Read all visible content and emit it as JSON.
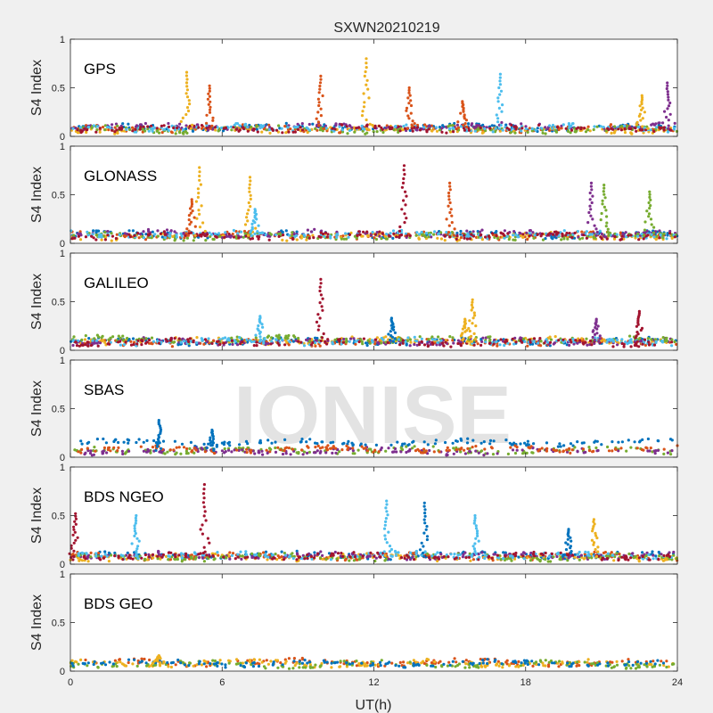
{
  "figure": {
    "title": "SXWN20210219",
    "xlabel": "UT(h)",
    "watermark": "IONISE"
  },
  "chart_data": [
    {
      "type": "scatter",
      "panel": "GPS",
      "title": "GPS",
      "ylabel": "S4 Index",
      "xlim": [
        0,
        24
      ],
      "ylim": [
        0,
        1
      ],
      "xticks": [
        "0",
        "6",
        "12",
        "18",
        "24"
      ],
      "yticks": [
        "0",
        "0.5",
        "1"
      ],
      "baseline": 0.08,
      "series": [
        {
          "color": "#0072BD",
          "level": 0.09
        },
        {
          "color": "#D95319",
          "level": 0.08
        },
        {
          "color": "#EDB120",
          "level": 0.07
        },
        {
          "color": "#7E2F8E",
          "level": 0.1
        },
        {
          "color": "#77AC30",
          "level": 0.07
        },
        {
          "color": "#4DBEEE",
          "level": 0.09
        },
        {
          "color": "#A2142F",
          "level": 0.08
        }
      ],
      "spikes": [
        {
          "x": 4.6,
          "y": 0.66,
          "color": "#EDB120"
        },
        {
          "x": 5.5,
          "y": 0.52,
          "color": "#D95319"
        },
        {
          "x": 9.9,
          "y": 0.62,
          "color": "#D95319"
        },
        {
          "x": 11.7,
          "y": 0.8,
          "color": "#EDB120"
        },
        {
          "x": 13.4,
          "y": 0.5,
          "color": "#D95319"
        },
        {
          "x": 15.5,
          "y": 0.36,
          "color": "#D95319"
        },
        {
          "x": 17.0,
          "y": 0.64,
          "color": "#4DBEEE"
        },
        {
          "x": 22.6,
          "y": 0.42,
          "color": "#EDB120"
        },
        {
          "x": 23.6,
          "y": 0.55,
          "color": "#7E2F8E"
        }
      ]
    },
    {
      "type": "scatter",
      "panel": "GLONASS",
      "title": "GLONASS",
      "ylabel": "S4 Index",
      "xlim": [
        0,
        24
      ],
      "ylim": [
        0,
        1
      ],
      "xticks": [
        "0",
        "6",
        "12",
        "18",
        "24"
      ],
      "yticks": [
        "0",
        "0.5",
        "1"
      ],
      "baseline": 0.08,
      "series": [
        {
          "color": "#0072BD",
          "level": 0.09
        },
        {
          "color": "#D95319",
          "level": 0.08
        },
        {
          "color": "#EDB120",
          "level": 0.07
        },
        {
          "color": "#7E2F8E",
          "level": 0.1
        },
        {
          "color": "#77AC30",
          "level": 0.07
        },
        {
          "color": "#4DBEEE",
          "level": 0.09
        },
        {
          "color": "#A2142F",
          "level": 0.08
        }
      ],
      "spikes": [
        {
          "x": 5.1,
          "y": 0.78,
          "color": "#EDB120"
        },
        {
          "x": 4.8,
          "y": 0.45,
          "color": "#D95319"
        },
        {
          "x": 7.1,
          "y": 0.68,
          "color": "#EDB120"
        },
        {
          "x": 7.3,
          "y": 0.35,
          "color": "#4DBEEE"
        },
        {
          "x": 13.2,
          "y": 0.8,
          "color": "#A2142F"
        },
        {
          "x": 15.0,
          "y": 0.62,
          "color": "#D95319"
        },
        {
          "x": 20.6,
          "y": 0.62,
          "color": "#7E2F8E"
        },
        {
          "x": 21.1,
          "y": 0.6,
          "color": "#77AC30"
        },
        {
          "x": 22.9,
          "y": 0.53,
          "color": "#77AC30"
        }
      ]
    },
    {
      "type": "scatter",
      "panel": "GALILEO",
      "title": "GALILEO",
      "ylabel": "S4 Index",
      "xlim": [
        0,
        24
      ],
      "ylim": [
        0,
        1
      ],
      "xticks": [
        "0",
        "6",
        "12",
        "18",
        "24"
      ],
      "yticks": [
        "0",
        "0.5",
        "1"
      ],
      "baseline": 0.09,
      "series": [
        {
          "color": "#0072BD",
          "level": 0.09
        },
        {
          "color": "#D95319",
          "level": 0.08
        },
        {
          "color": "#EDB120",
          "level": 0.1
        },
        {
          "color": "#7E2F8E",
          "level": 0.09
        },
        {
          "color": "#77AC30",
          "level": 0.11
        },
        {
          "color": "#4DBEEE",
          "level": 0.09
        },
        {
          "color": "#A2142F",
          "level": 0.08
        }
      ],
      "spikes": [
        {
          "x": 9.9,
          "y": 0.73,
          "color": "#A2142F"
        },
        {
          "x": 12.7,
          "y": 0.33,
          "color": "#0072BD"
        },
        {
          "x": 7.5,
          "y": 0.35,
          "color": "#4DBEEE"
        },
        {
          "x": 15.9,
          "y": 0.52,
          "color": "#EDB120"
        },
        {
          "x": 15.6,
          "y": 0.32,
          "color": "#EDB120"
        },
        {
          "x": 22.5,
          "y": 0.4,
          "color": "#A2142F"
        },
        {
          "x": 20.8,
          "y": 0.32,
          "color": "#7E2F8E"
        }
      ]
    },
    {
      "type": "scatter",
      "panel": "SBAS",
      "title": "SBAS",
      "ylabel": "S4 Index",
      "xlim": [
        0,
        24
      ],
      "ylim": [
        0,
        1
      ],
      "xticks": [
        "0",
        "6",
        "12",
        "18",
        "24"
      ],
      "yticks": [
        "0",
        "0.5",
        "1"
      ],
      "baseline": 0.07,
      "series": [
        {
          "color": "#0072BD",
          "level": 0.15
        },
        {
          "color": "#77AC30",
          "level": 0.07
        },
        {
          "color": "#7E2F8E",
          "level": 0.06
        },
        {
          "color": "#D95319",
          "level": 0.08
        }
      ],
      "spikes": [
        {
          "x": 3.5,
          "y": 0.38,
          "color": "#0072BD"
        },
        {
          "x": 5.6,
          "y": 0.28,
          "color": "#0072BD"
        }
      ]
    },
    {
      "type": "scatter",
      "panel": "BDS NGEO",
      "title": "BDS NGEO",
      "ylabel": "S4 Index",
      "xlim": [
        0,
        24
      ],
      "ylim": [
        0,
        1
      ],
      "xticks": [
        "0",
        "6",
        "12",
        "18",
        "24"
      ],
      "yticks": [
        "0",
        "0.5",
        "1"
      ],
      "baseline": 0.08,
      "series": [
        {
          "color": "#0072BD",
          "level": 0.09
        },
        {
          "color": "#D95319",
          "level": 0.08
        },
        {
          "color": "#EDB120",
          "level": 0.07
        },
        {
          "color": "#7E2F8E",
          "level": 0.09
        },
        {
          "color": "#77AC30",
          "level": 0.07
        },
        {
          "color": "#4DBEEE",
          "level": 0.09
        },
        {
          "color": "#A2142F",
          "level": 0.08
        }
      ],
      "spikes": [
        {
          "x": 0.2,
          "y": 0.52,
          "color": "#A2142F"
        },
        {
          "x": 2.6,
          "y": 0.5,
          "color": "#4DBEEE"
        },
        {
          "x": 5.3,
          "y": 0.82,
          "color": "#A2142F"
        },
        {
          "x": 12.5,
          "y": 0.65,
          "color": "#4DBEEE"
        },
        {
          "x": 14.0,
          "y": 0.63,
          "color": "#0072BD"
        },
        {
          "x": 16.0,
          "y": 0.5,
          "color": "#4DBEEE"
        },
        {
          "x": 19.7,
          "y": 0.36,
          "color": "#0072BD"
        },
        {
          "x": 20.7,
          "y": 0.46,
          "color": "#EDB120"
        }
      ]
    },
    {
      "type": "scatter",
      "panel": "BDS GEO",
      "title": "BDS GEO",
      "ylabel": "S4 Index",
      "xlim": [
        0,
        24
      ],
      "ylim": [
        0,
        1
      ],
      "xticks": [
        "0",
        "6",
        "12",
        "18",
        "24"
      ],
      "yticks": [
        "0",
        "0.5",
        "1"
      ],
      "baseline": 0.08,
      "series": [
        {
          "color": "#D95319",
          "level": 0.09
        },
        {
          "color": "#EDB120",
          "level": 0.08
        },
        {
          "color": "#77AC30",
          "level": 0.07
        },
        {
          "color": "#0072BD",
          "level": 0.08
        }
      ],
      "spikes": [
        {
          "x": 3.5,
          "y": 0.16,
          "color": "#EDB120"
        }
      ]
    }
  ]
}
